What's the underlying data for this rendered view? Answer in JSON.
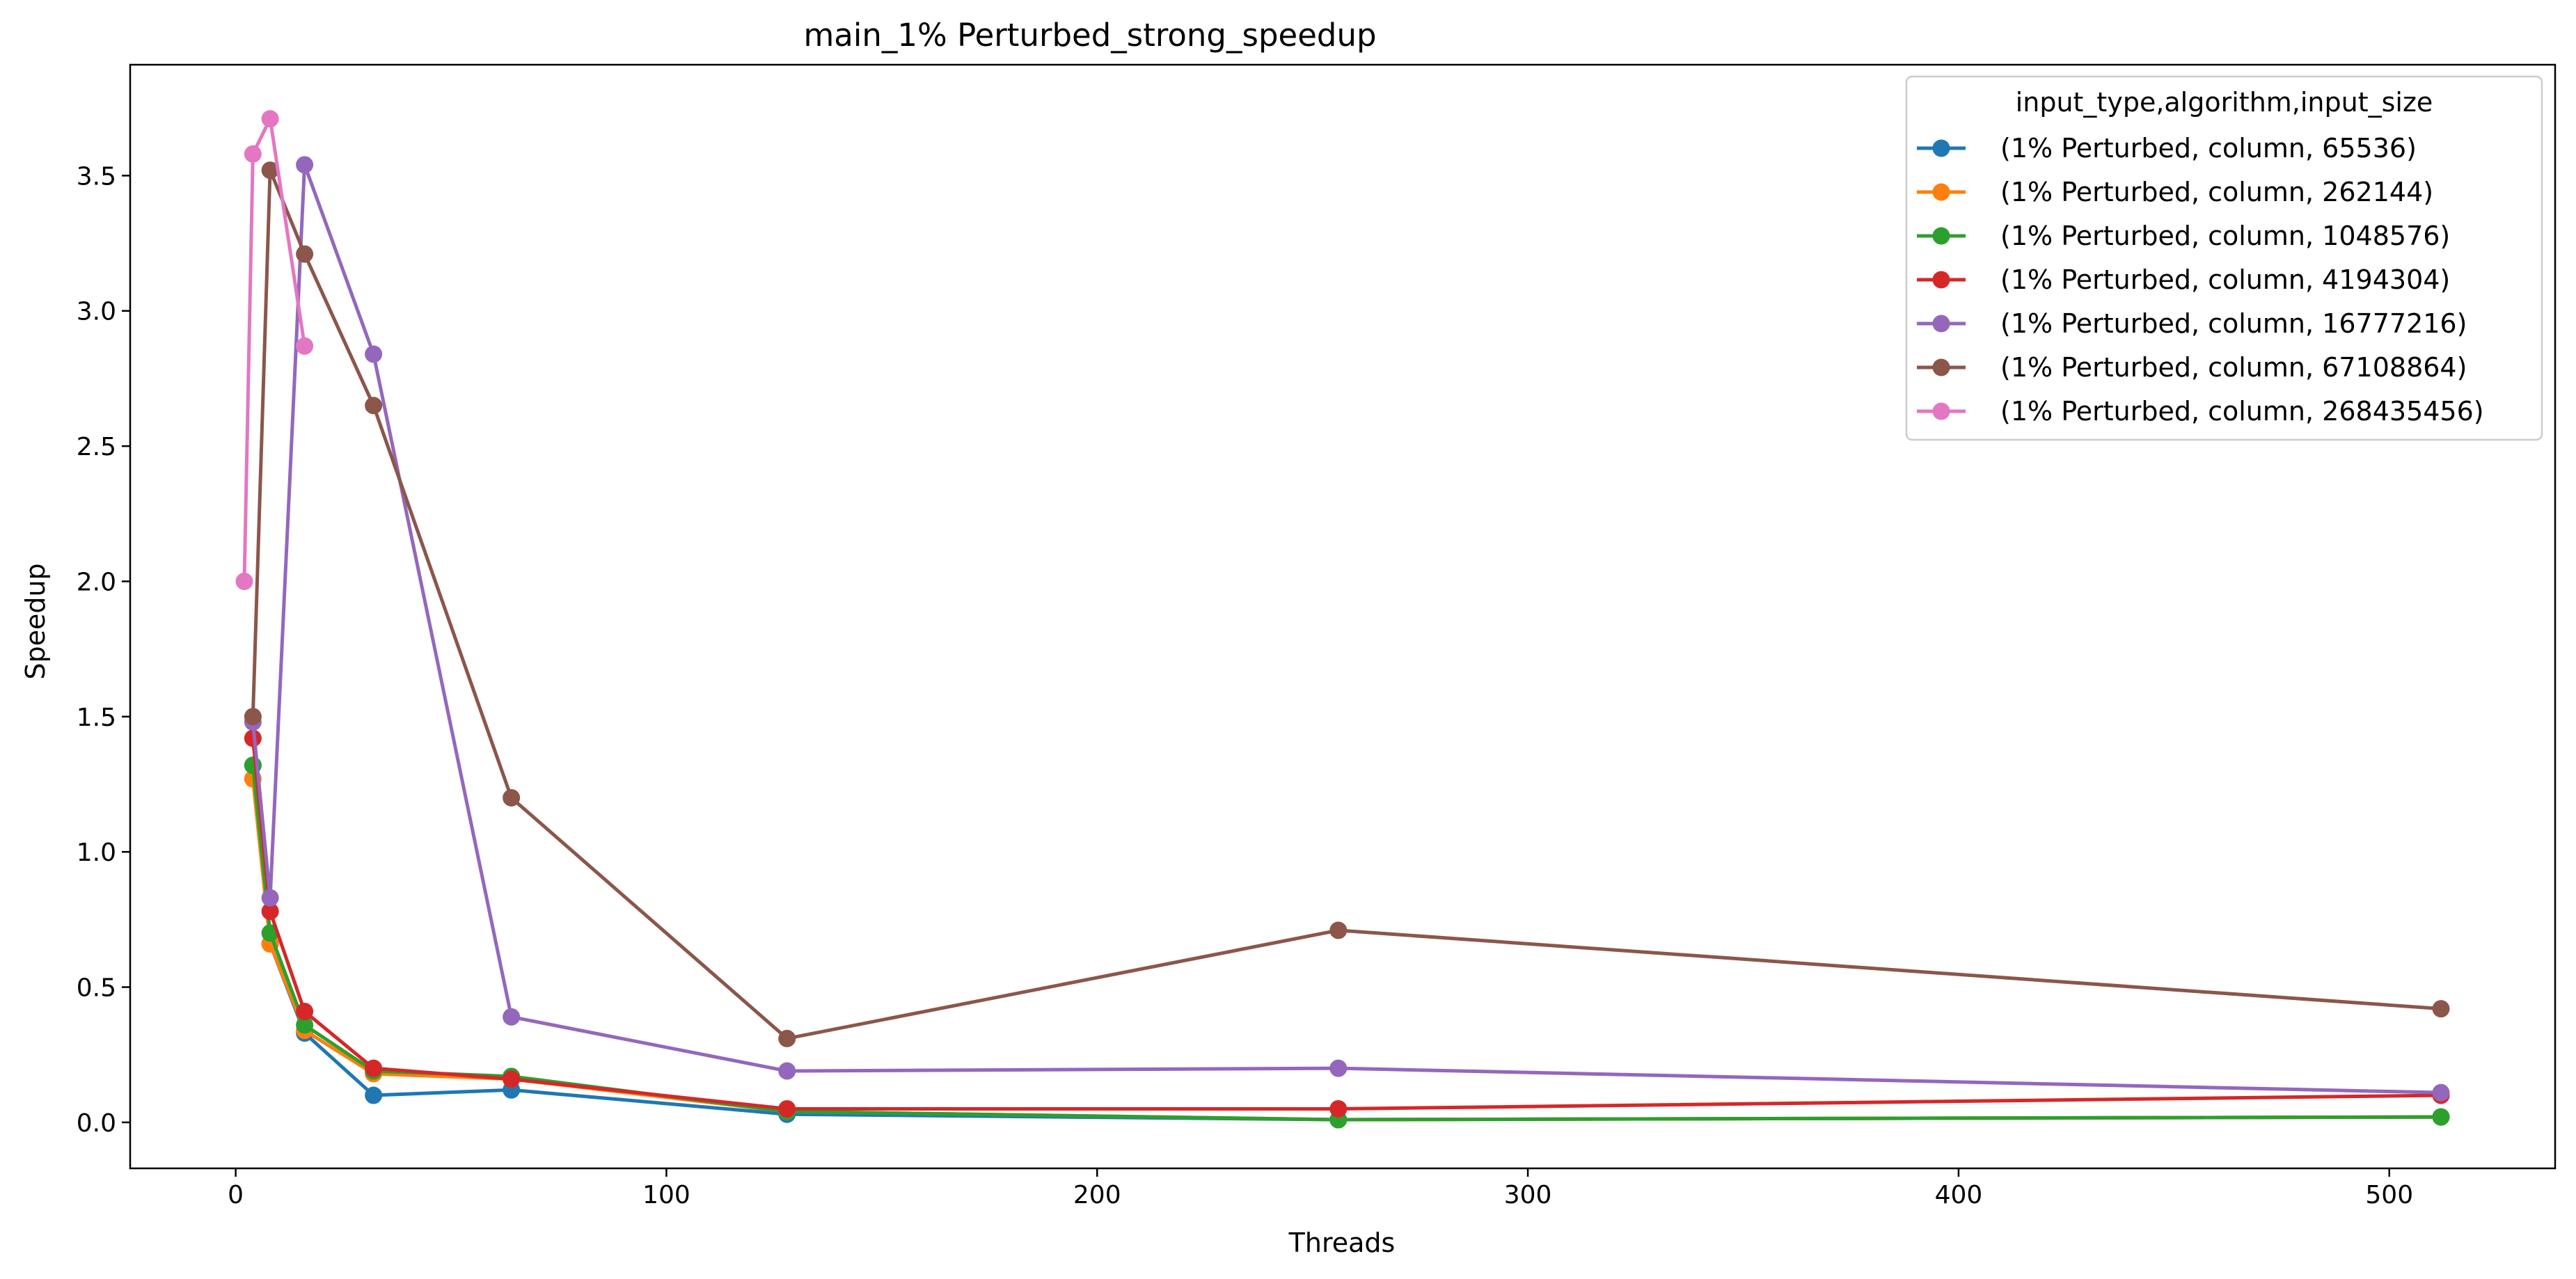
{
  "chart_data": {
    "type": "line",
    "title": "main_1% Perturbed_strong_speedup",
    "xlabel": "Threads",
    "ylabel": "Speedup",
    "xlim": [
      -24.5,
      538.5
    ],
    "ylim": [
      -0.17,
      3.91
    ],
    "xticks": [
      0,
      100,
      200,
      300,
      400,
      500
    ],
    "xtick_labels": [
      "0",
      "100",
      "200",
      "300",
      "400",
      "500"
    ],
    "yticks": [
      0.0,
      0.5,
      1.0,
      1.5,
      2.0,
      2.5,
      3.0,
      3.5
    ],
    "ytick_labels": [
      "0.0",
      "0.5",
      "1.0",
      "1.5",
      "2.0",
      "2.5",
      "3.0",
      "3.5"
    ],
    "grid": false,
    "legend": {
      "title": "input_type,algorithm,input_size",
      "placement": "top-right"
    },
    "series": [
      {
        "name": "(1% Perturbed, column, 65536)",
        "color": "#1f77b4",
        "x": [
          4,
          8,
          16,
          32,
          64,
          128,
          256,
          512
        ],
        "y": [
          1.32,
          0.66,
          0.33,
          0.1,
          0.12,
          0.03,
          0.01,
          0.02
        ]
      },
      {
        "name": "(1% Perturbed, column, 262144)",
        "color": "#ff7f0e",
        "x": [
          4,
          8,
          16,
          32,
          64,
          128,
          256,
          512
        ],
        "y": [
          1.27,
          0.66,
          0.34,
          0.18,
          0.16,
          0.04,
          0.01,
          0.02
        ]
      },
      {
        "name": "(1% Perturbed, column, 1048576)",
        "color": "#2ca02c",
        "x": [
          4,
          8,
          16,
          32,
          64,
          128,
          256,
          512
        ],
        "y": [
          1.32,
          0.7,
          0.36,
          0.19,
          0.17,
          0.04,
          0.01,
          0.02
        ]
      },
      {
        "name": "(1% Perturbed, column, 4194304)",
        "color": "#d62728",
        "x": [
          4,
          8,
          16,
          32,
          64,
          128,
          256,
          512
        ],
        "y": [
          1.42,
          0.78,
          0.41,
          0.2,
          0.16,
          0.05,
          0.05,
          0.1
        ]
      },
      {
        "name": "(1% Perturbed, column, 16777216)",
        "color": "#9467bd",
        "x": [
          4,
          8,
          16,
          32,
          64,
          128,
          256,
          512
        ],
        "y": [
          1.48,
          0.83,
          3.54,
          2.84,
          0.39,
          0.19,
          0.2,
          0.11
        ]
      },
      {
        "name": "(1% Perturbed, column, 67108864)",
        "color": "#8c564b",
        "x": [
          4,
          8,
          16,
          32,
          64,
          128,
          256,
          512
        ],
        "y": [
          1.5,
          3.52,
          3.21,
          2.65,
          1.2,
          0.31,
          0.71,
          0.42
        ]
      },
      {
        "name": "(1% Perturbed, column, 268435456)",
        "color": "#e377c2",
        "x": [
          2,
          4,
          8,
          16
        ],
        "y": [
          2.0,
          3.58,
          3.71,
          2.87
        ]
      }
    ]
  }
}
